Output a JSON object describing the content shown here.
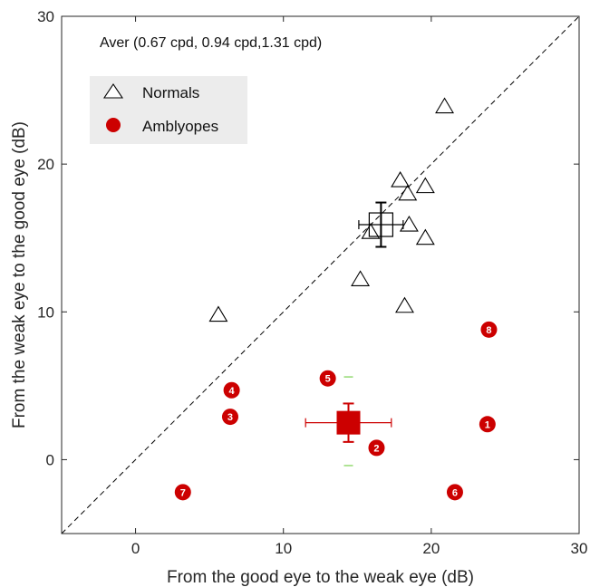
{
  "chart_data": {
    "type": "scatter",
    "title": "",
    "annotation": "Aver (0.67 cpd, 0.94 cpd,1.31 cpd)",
    "xlabel": "From the good eye to the weak eye (dB)",
    "ylabel": "From the weak eye to the good eye (dB)",
    "xlim": [
      -5,
      30
    ],
    "ylim": [
      -5,
      30
    ],
    "xticks": [
      0,
      10,
      20,
      30
    ],
    "yticks": [
      0,
      10,
      20,
      30
    ],
    "x_tick_labels": [
      "0",
      "10",
      "20",
      "30"
    ],
    "y_tick_labels": [
      "0",
      "10",
      "20",
      "30"
    ],
    "grid": false,
    "legend_position": "top-left",
    "reference_line": {
      "style": "dashed",
      "from": [
        -5,
        -5
      ],
      "to": [
        30,
        30
      ]
    },
    "series": [
      {
        "name": "Normals",
        "marker": "open-triangle",
        "color": "#000000",
        "points": [
          {
            "x": 20.9,
            "y": 23.9
          },
          {
            "x": 17.9,
            "y": 18.9
          },
          {
            "x": 19.6,
            "y": 18.5
          },
          {
            "x": 18.4,
            "y": 18.0
          },
          {
            "x": 18.5,
            "y": 15.9
          },
          {
            "x": 19.6,
            "y": 15.0
          },
          {
            "x": 15.9,
            "y": 15.4
          },
          {
            "x": 15.2,
            "y": 12.2
          },
          {
            "x": 18.2,
            "y": 10.4
          },
          {
            "x": 5.6,
            "y": 9.8
          }
        ],
        "mean": {
          "x": 16.6,
          "y": 15.9,
          "xerr": 1.5,
          "yerr": 1.5
        }
      },
      {
        "name": "Amblyopes",
        "marker": "filled-circle",
        "color": "#cc0000",
        "points": [
          {
            "id": "1",
            "x": 23.8,
            "y": 2.4
          },
          {
            "id": "2",
            "x": 16.3,
            "y": 0.8
          },
          {
            "id": "3",
            "x": 6.4,
            "y": 2.9
          },
          {
            "id": "4",
            "x": 6.5,
            "y": 4.7
          },
          {
            "id": "5",
            "x": 13.0,
            "y": 5.5
          },
          {
            "id": "6",
            "x": 21.6,
            "y": -2.2
          },
          {
            "id": "7",
            "x": 3.2,
            "y": -2.2
          },
          {
            "id": "8",
            "x": 23.9,
            "y": 8.8
          }
        ],
        "mean": {
          "x": 14.4,
          "y": 2.5,
          "xerr": 2.9,
          "yerr": 1.3
        }
      }
    ],
    "auxiliary_error_bar": {
      "x": 14.4,
      "y_low": -0.4,
      "y_high": 5.6,
      "color": "#7ad14f"
    }
  }
}
